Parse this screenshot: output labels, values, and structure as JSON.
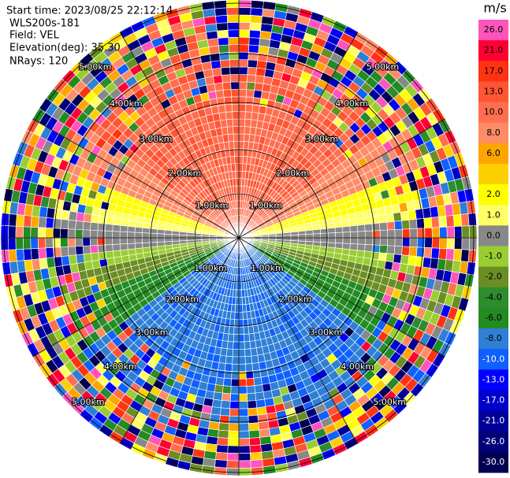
{
  "header": {
    "start_time": "Start time: 2023/08/25 22:12:14",
    "instrument": "WLS200s-181",
    "field": "Field: VEL",
    "elevation": "Elevation(deg): 35.30",
    "nrays": "NRays: 120"
  },
  "colorbar": {
    "unit": "m/s",
    "levels": [
      {
        "label": "26.0",
        "color": "#ff55bb"
      },
      {
        "label": "21.0",
        "color": "#ff0033"
      },
      {
        "label": "17.0",
        "color": "#ff3311"
      },
      {
        "label": "13.0",
        "color": "#ff5533"
      },
      {
        "label": "10.0",
        "color": "#ff6f4f"
      },
      {
        "label": "8.0",
        "color": "#ff8c66"
      },
      {
        "label": "6.0",
        "color": "#ffa500"
      },
      {
        "label": null,
        "color": "#ffd000"
      },
      {
        "label": "2.0",
        "color": "#ffff00"
      },
      {
        "label": "1.0",
        "color": "#ffff66"
      },
      {
        "label": "0.0",
        "color": "#888888"
      },
      {
        "label": "-1.0",
        "color": "#9acd32"
      },
      {
        "label": "-2.0",
        "color": "#6b8e23"
      },
      {
        "label": "-4.0",
        "color": "#2e8b2e"
      },
      {
        "label": "-6.0",
        "color": "#228b22"
      },
      {
        "label": "-8.0",
        "color": "#2f7fd6"
      },
      {
        "label": "-10.0",
        "color": "#1060ff"
      },
      {
        "label": "-13.0",
        "color": "#0000ff"
      },
      {
        "label": "-17.0",
        "color": "#0000cc"
      },
      {
        "label": "-21.0",
        "color": "#000099"
      },
      {
        "label": "-26.0",
        "color": "#00007a"
      },
      {
        "label": "-30.0",
        "color": "#000050"
      }
    ]
  },
  "rings": [
    {
      "label": "1.00km"
    },
    {
      "label": "2.00km"
    },
    {
      "label": "3.00km"
    },
    {
      "label": "4.00km"
    },
    {
      "label": "5.00km"
    }
  ]
}
